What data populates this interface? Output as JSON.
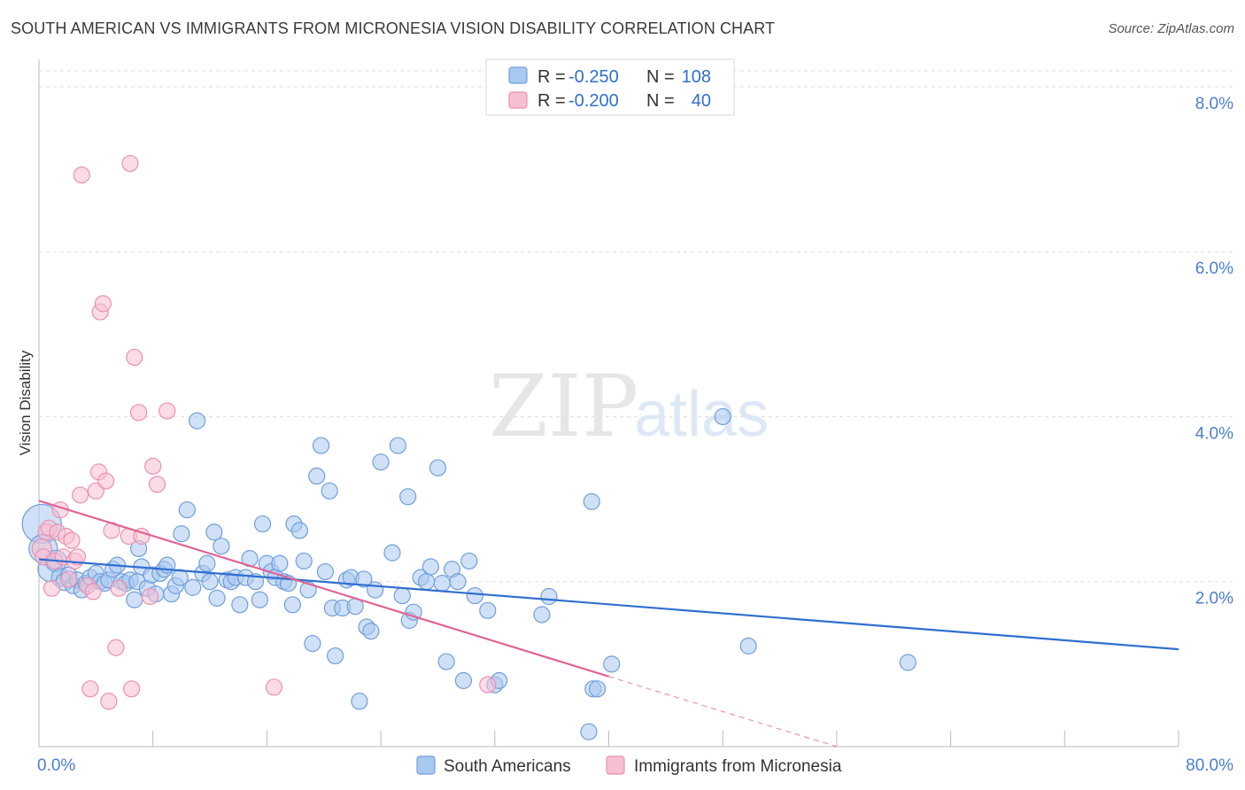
{
  "header": {
    "title": "SOUTH AMERICAN VS IMMIGRANTS FROM MICRONESIA VISION DISABILITY CORRELATION CHART",
    "source": "Source: ZipAtlas.com"
  },
  "watermark": {
    "zip": "ZIP",
    "atlas": "atlas"
  },
  "colors": {
    "blue_fill": "#a9c8f0",
    "blue_stroke": "#6f9fdc",
    "blue_line": "#2f6fcf",
    "pink_fill": "#f7bfd2",
    "pink_stroke": "#ec8fb0",
    "pink_line": "#e26394",
    "tick_text": "#4a7fd0",
    "grid": "#dddddd"
  },
  "chart_data": {
    "type": "scatter",
    "xlabel": "",
    "ylabel": "Vision Disability",
    "xlim": [
      0,
      80
    ],
    "ylim": [
      0,
      8.3
    ],
    "x_tick_labels": [
      "0.0%",
      "80.0%"
    ],
    "y_ticks": [
      2,
      4,
      6,
      8
    ],
    "y_tick_labels": [
      "2.0%",
      "4.0%",
      "6.0%",
      "8.0%"
    ],
    "grid": "horizontal-dashed",
    "legend_placement": "top-center",
    "legend": [
      {
        "r_label": "R =",
        "r_value": "-0.250",
        "n_label": "N =",
        "n_value": "108"
      },
      {
        "r_label": "R =",
        "r_value": "-0.200",
        "n_label": "N =",
        "n_value": "40"
      }
    ],
    "bottom_legend": [
      "South Americans",
      "Immigrants from Micronesia"
    ],
    "series": [
      {
        "name": "South Americans",
        "color": "blue",
        "trend": {
          "x": [
            0,
            80
          ],
          "y": [
            2.27,
            1.18
          ]
        },
        "points": [
          [
            0.2,
            2.7,
            22
          ],
          [
            0.3,
            2.4,
            16
          ],
          [
            0.8,
            2.15,
            14
          ],
          [
            1.2,
            2.25,
            12
          ],
          [
            1.5,
            2.05,
            10
          ],
          [
            1.8,
            2.0,
            10
          ],
          [
            2.1,
            2.08,
            9
          ],
          [
            2.4,
            1.95,
            9
          ],
          [
            2.7,
            2.02,
            9
          ],
          [
            3.0,
            1.9,
            9
          ],
          [
            3.3,
            1.98,
            9
          ],
          [
            3.6,
            2.05,
            9
          ],
          [
            4.0,
            2.1,
            9
          ],
          [
            4.3,
            2.0,
            9
          ],
          [
            4.6,
            1.98,
            9
          ],
          [
            4.9,
            2.02,
            9
          ],
          [
            5.2,
            2.15,
            9
          ],
          [
            5.5,
            2.2,
            9
          ],
          [
            5.8,
            2.0,
            9
          ],
          [
            6.1,
            1.98,
            9
          ],
          [
            6.4,
            2.02,
            9
          ],
          [
            6.7,
            1.78,
            9
          ],
          [
            6.9,
            2.0,
            9
          ],
          [
            7.2,
            2.18,
            9
          ],
          [
            7.0,
            2.4,
            9
          ],
          [
            7.6,
            1.92,
            9
          ],
          [
            7.9,
            2.08,
            9
          ],
          [
            8.2,
            1.85,
            9
          ],
          [
            8.5,
            2.1,
            9
          ],
          [
            8.8,
            2.15,
            9
          ],
          [
            9.0,
            2.2,
            9
          ],
          [
            9.3,
            1.85,
            9
          ],
          [
            9.6,
            1.95,
            9
          ],
          [
            9.9,
            2.05,
            9
          ],
          [
            10.0,
            2.58,
            9
          ],
          [
            10.4,
            2.87,
            9
          ],
          [
            10.8,
            1.93,
            9
          ],
          [
            11.1,
            3.95,
            9
          ],
          [
            11.5,
            2.1,
            9
          ],
          [
            11.8,
            2.22,
            9
          ],
          [
            12.0,
            2.0,
            9
          ],
          [
            12.3,
            2.6,
            9
          ],
          [
            12.5,
            1.8,
            9
          ],
          [
            12.8,
            2.43,
            9
          ],
          [
            13.2,
            2.02,
            9
          ],
          [
            13.5,
            2.0,
            9
          ],
          [
            13.8,
            2.05,
            9
          ],
          [
            14.1,
            1.72,
            9
          ],
          [
            14.5,
            2.05,
            9
          ],
          [
            14.8,
            2.28,
            9
          ],
          [
            15.2,
            2.0,
            9
          ],
          [
            15.5,
            1.78,
            9
          ],
          [
            15.7,
            2.7,
            9
          ],
          [
            16.0,
            2.22,
            9
          ],
          [
            16.3,
            2.12,
            9
          ],
          [
            16.6,
            2.05,
            9
          ],
          [
            16.9,
            2.22,
            9
          ],
          [
            17.2,
            2.0,
            9
          ],
          [
            17.5,
            1.98,
            9
          ],
          [
            17.8,
            1.72,
            9
          ],
          [
            17.9,
            2.7,
            9
          ],
          [
            18.3,
            2.62,
            9
          ],
          [
            18.6,
            2.25,
            9
          ],
          [
            18.9,
            1.9,
            9
          ],
          [
            19.2,
            1.25,
            9
          ],
          [
            19.5,
            3.28,
            9
          ],
          [
            19.8,
            3.65,
            9
          ],
          [
            20.1,
            2.12,
            9
          ],
          [
            20.4,
            3.1,
            9
          ],
          [
            20.6,
            1.68,
            9
          ],
          [
            20.8,
            1.1,
            9
          ],
          [
            21.3,
            1.68,
            9
          ],
          [
            21.6,
            2.02,
            9
          ],
          [
            21.9,
            2.05,
            9
          ],
          [
            22.2,
            1.7,
            9
          ],
          [
            22.5,
            0.55,
            9
          ],
          [
            22.8,
            2.03,
            9
          ],
          [
            23.0,
            1.45,
            9
          ],
          [
            23.3,
            1.4,
            9
          ],
          [
            23.6,
            1.9,
            9
          ],
          [
            24.0,
            3.45,
            9
          ],
          [
            24.8,
            2.35,
            9
          ],
          [
            25.2,
            3.65,
            9
          ],
          [
            25.5,
            1.83,
            9
          ],
          [
            25.9,
            3.03,
            9
          ],
          [
            26.0,
            1.53,
            9
          ],
          [
            26.3,
            1.63,
            9
          ],
          [
            26.8,
            2.05,
            9
          ],
          [
            27.2,
            2.0,
            9
          ],
          [
            27.5,
            2.18,
            9
          ],
          [
            28.0,
            3.38,
            9
          ],
          [
            28.3,
            1.98,
            9
          ],
          [
            28.6,
            1.03,
            9
          ],
          [
            29.0,
            2.15,
            9
          ],
          [
            29.4,
            2.0,
            9
          ],
          [
            29.8,
            0.8,
            9
          ],
          [
            30.2,
            2.25,
            9
          ],
          [
            30.6,
            1.83,
            9
          ],
          [
            31.5,
            1.65,
            9
          ],
          [
            32.0,
            0.75,
            9
          ],
          [
            32.3,
            0.8,
            9
          ],
          [
            35.3,
            1.6,
            9
          ],
          [
            35.8,
            1.82,
            9
          ],
          [
            38.8,
            2.97,
            9
          ],
          [
            38.9,
            0.7,
            9
          ],
          [
            39.2,
            0.7,
            9
          ],
          [
            40.2,
            1.0,
            9
          ],
          [
            48.0,
            4.0,
            9
          ],
          [
            49.8,
            1.22,
            9
          ],
          [
            61.0,
            1.02,
            9
          ],
          [
            38.6,
            0.18,
            9
          ]
        ]
      },
      {
        "name": "Immigrants from Micronesia",
        "color": "pink",
        "trend": {
          "x": [
            0,
            40
          ],
          "y": [
            2.98,
            0.85
          ]
        },
        "trend_dashed": {
          "x": [
            40,
            56
          ],
          "y": [
            0.85,
            0.0
          ]
        },
        "points": [
          [
            0.2,
            2.4,
            11
          ],
          [
            0.3,
            2.3,
            9
          ],
          [
            0.5,
            2.6,
            9
          ],
          [
            0.7,
            2.65,
            9
          ],
          [
            0.9,
            1.92,
            9
          ],
          [
            1.1,
            2.25,
            9
          ],
          [
            1.3,
            2.6,
            9
          ],
          [
            1.5,
            2.87,
            9
          ],
          [
            1.7,
            2.3,
            9
          ],
          [
            1.9,
            2.55,
            9
          ],
          [
            2.1,
            2.03,
            9
          ],
          [
            2.3,
            2.5,
            9
          ],
          [
            2.5,
            2.25,
            9
          ],
          [
            2.7,
            2.3,
            9
          ],
          [
            2.9,
            3.05,
            9
          ],
          [
            3.0,
            6.93,
            9
          ],
          [
            3.4,
            1.95,
            9
          ],
          [
            3.6,
            0.7,
            9
          ],
          [
            3.8,
            1.88,
            9
          ],
          [
            4.0,
            3.1,
            9
          ],
          [
            4.2,
            3.33,
            9
          ],
          [
            4.3,
            5.27,
            9
          ],
          [
            4.5,
            5.37,
            9
          ],
          [
            4.7,
            3.22,
            9
          ],
          [
            4.9,
            0.55,
            9
          ],
          [
            5.1,
            2.62,
            9
          ],
          [
            5.4,
            1.2,
            9
          ],
          [
            5.6,
            1.92,
            9
          ],
          [
            6.3,
            2.55,
            9
          ],
          [
            6.5,
            0.7,
            9
          ],
          [
            6.4,
            7.07,
            9
          ],
          [
            6.7,
            4.72,
            9
          ],
          [
            7.0,
            4.05,
            9
          ],
          [
            7.2,
            2.55,
            9
          ],
          [
            7.8,
            1.82,
            9
          ],
          [
            8.0,
            3.4,
            9
          ],
          [
            8.3,
            3.18,
            9
          ],
          [
            9.0,
            4.07,
            9
          ],
          [
            16.5,
            0.72,
            9
          ],
          [
            31.5,
            0.75,
            9
          ]
        ]
      }
    ]
  }
}
